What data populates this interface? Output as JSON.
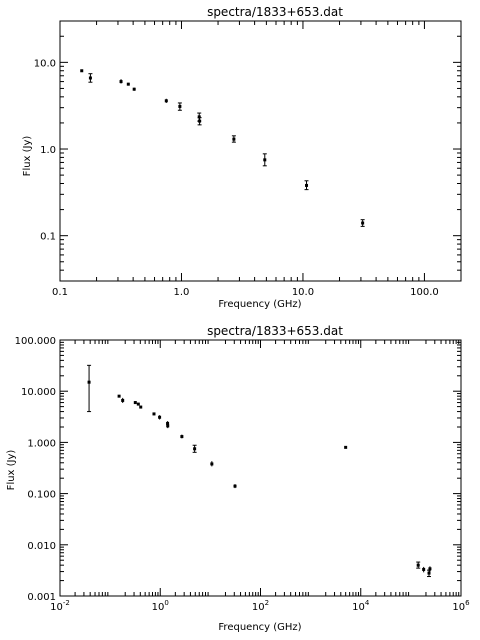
{
  "chart_data": [
    {
      "type": "scatter",
      "title": "spectra/1833+653.dat",
      "xlabel": "Frequency (GHz)",
      "ylabel": "Flux (Jy)",
      "xscale": "log",
      "yscale": "log",
      "xlim": [
        0.1,
        200
      ],
      "ylim": [
        0.03,
        30
      ],
      "xticks": [
        0.1,
        1.0,
        10.0,
        100.0
      ],
      "xtick_labels": [
        "0.1",
        "1.0",
        "10.0",
        "100.0"
      ],
      "yticks": [
        0.1,
        1.0,
        10.0
      ],
      "ytick_labels": [
        "0.1",
        "1.0",
        "10.0"
      ],
      "grid": false,
      "points": [
        {
          "x": 0.151,
          "y": 8.0,
          "ylo": 7.8,
          "yhi": 8.2
        },
        {
          "x": 0.178,
          "y": 6.6,
          "ylo": 5.9,
          "yhi": 7.4
        },
        {
          "x": 0.318,
          "y": 6.0,
          "ylo": 5.7,
          "yhi": 6.4
        },
        {
          "x": 0.365,
          "y": 5.6,
          "ylo": 5.4,
          "yhi": 5.8
        },
        {
          "x": 0.408,
          "y": 4.9,
          "ylo": 4.7,
          "yhi": 5.1
        },
        {
          "x": 0.75,
          "y": 3.6,
          "ylo": 3.4,
          "yhi": 3.8
        },
        {
          "x": 0.97,
          "y": 3.1,
          "ylo": 2.8,
          "yhi": 3.4
        },
        {
          "x": 1.4,
          "y": 2.35,
          "ylo": 2.1,
          "yhi": 2.6
        },
        {
          "x": 1.41,
          "y": 2.1,
          "ylo": 1.9,
          "yhi": 2.3
        },
        {
          "x": 2.7,
          "y": 1.3,
          "ylo": 1.2,
          "yhi": 1.42
        },
        {
          "x": 4.85,
          "y": 0.75,
          "ylo": 0.64,
          "yhi": 0.88
        },
        {
          "x": 10.7,
          "y": 0.38,
          "ylo": 0.34,
          "yhi": 0.43
        },
        {
          "x": 31.0,
          "y": 0.14,
          "ylo": 0.128,
          "yhi": 0.153
        }
      ]
    },
    {
      "type": "scatter",
      "title": "spectra/1833+653.dat",
      "xlabel": "Frequency (GHz)",
      "ylabel": "Flux (Jy)",
      "xscale": "log",
      "yscale": "log",
      "xlim": [
        0.01,
        1000000
      ],
      "ylim": [
        0.001,
        100
      ],
      "xticks": [
        0.01,
        1,
        100,
        10000,
        1000000
      ],
      "xtick_labels": [
        {
          "b": "10",
          "e": "-2"
        },
        {
          "b": "10",
          "e": "0"
        },
        {
          "b": "10",
          "e": "2"
        },
        {
          "b": "10",
          "e": "4"
        },
        {
          "b": "10",
          "e": "6"
        }
      ],
      "yticks": [
        0.001,
        0.01,
        0.1,
        1,
        10,
        100
      ],
      "ytick_labels": [
        "0.001",
        "0.010",
        "0.100",
        "1.000",
        "10.000",
        "100.000"
      ],
      "grid": false,
      "points": [
        {
          "x": 0.038,
          "y": 15.0,
          "ylo": 4.0,
          "yhi": 32.0
        },
        {
          "x": 0.151,
          "y": 8.0,
          "ylo": 7.8,
          "yhi": 8.2
        },
        {
          "x": 0.178,
          "y": 6.6,
          "ylo": 5.9,
          "yhi": 7.4
        },
        {
          "x": 0.318,
          "y": 6.0,
          "ylo": 5.7,
          "yhi": 6.4
        },
        {
          "x": 0.365,
          "y": 5.6,
          "ylo": 5.4,
          "yhi": 5.8
        },
        {
          "x": 0.408,
          "y": 4.9,
          "ylo": 4.7,
          "yhi": 5.1
        },
        {
          "x": 0.75,
          "y": 3.6,
          "ylo": 3.4,
          "yhi": 3.8
        },
        {
          "x": 0.97,
          "y": 3.1,
          "ylo": 2.8,
          "yhi": 3.4
        },
        {
          "x": 1.4,
          "y": 2.35,
          "ylo": 2.1,
          "yhi": 2.6
        },
        {
          "x": 1.41,
          "y": 2.1,
          "ylo": 1.9,
          "yhi": 2.3
        },
        {
          "x": 2.7,
          "y": 1.3,
          "ylo": 1.2,
          "yhi": 1.42
        },
        {
          "x": 4.85,
          "y": 0.75,
          "ylo": 0.64,
          "yhi": 0.88
        },
        {
          "x": 10.7,
          "y": 0.38,
          "ylo": 0.34,
          "yhi": 0.43
        },
        {
          "x": 31.0,
          "y": 0.14,
          "ylo": 0.128,
          "yhi": 0.153
        },
        {
          "x": 5000,
          "y": 0.8,
          "ylo": 0.76,
          "yhi": 0.84
        },
        {
          "x": 140000,
          "y": 0.004,
          "ylo": 0.0035,
          "yhi": 0.0046
        },
        {
          "x": 180000,
          "y": 0.0033,
          "ylo": 0.0029,
          "yhi": 0.0037
        },
        {
          "x": 230000,
          "y": 0.0028,
          "ylo": 0.0024,
          "yhi": 0.0032
        },
        {
          "x": 240000,
          "y": 0.0034,
          "ylo": 0.003,
          "yhi": 0.0038
        }
      ]
    }
  ]
}
